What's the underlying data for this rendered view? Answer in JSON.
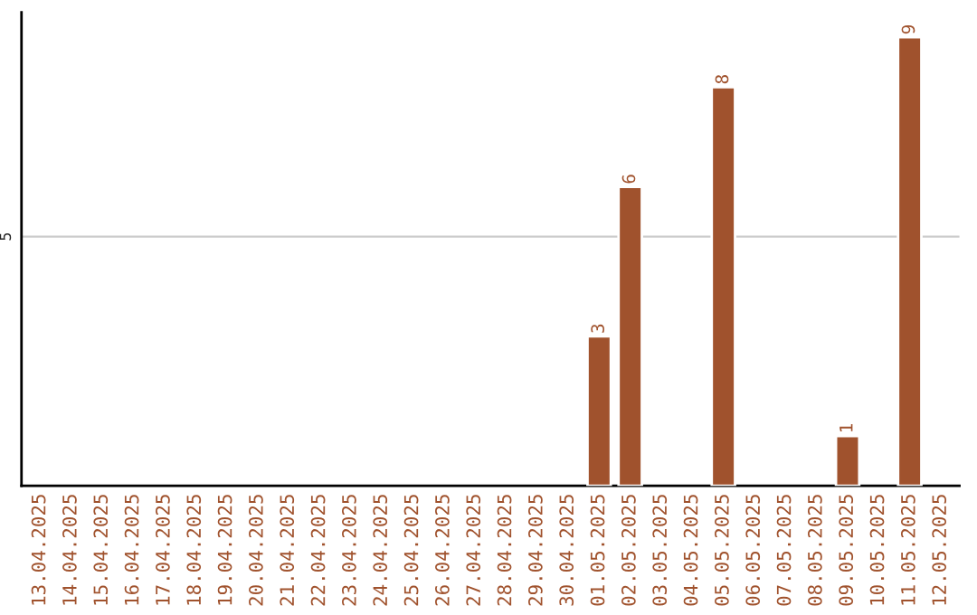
{
  "chart_data": {
    "type": "bar",
    "categories": [
      "13.04.2025",
      "14.04.2025",
      "15.04.2025",
      "16.04.2025",
      "17.04.2025",
      "18.04.2025",
      "19.04.2025",
      "20.04.2025",
      "21.04.2025",
      "22.04.2025",
      "23.04.2025",
      "24.04.2025",
      "25.04.2025",
      "26.04.2025",
      "27.04.2025",
      "28.04.2025",
      "29.04.2025",
      "30.04.2025",
      "01.05.2025",
      "02.05.2025",
      "03.05.2025",
      "04.05.2025",
      "05.05.2025",
      "06.05.2025",
      "07.05.2025",
      "08.05.2025",
      "09.05.2025",
      "10.05.2025",
      "11.05.2025",
      "12.05.2025"
    ],
    "values": [
      null,
      null,
      null,
      null,
      null,
      null,
      null,
      null,
      null,
      null,
      null,
      null,
      null,
      null,
      null,
      null,
      null,
      null,
      3,
      6,
      null,
      null,
      8,
      null,
      null,
      null,
      1,
      null,
      9,
      null
    ],
    "color": "#a0522d",
    "value_labels": [
      null,
      null,
      null,
      null,
      null,
      null,
      null,
      null,
      null,
      null,
      null,
      null,
      null,
      null,
      null,
      null,
      null,
      null,
      "3",
      "6",
      null,
      null,
      "8",
      null,
      null,
      null,
      "1",
      null,
      "9",
      null
    ],
    "ylim": [
      0,
      9.5
    ],
    "yticks": [
      5
    ],
    "grid": "y",
    "legend": false
  }
}
